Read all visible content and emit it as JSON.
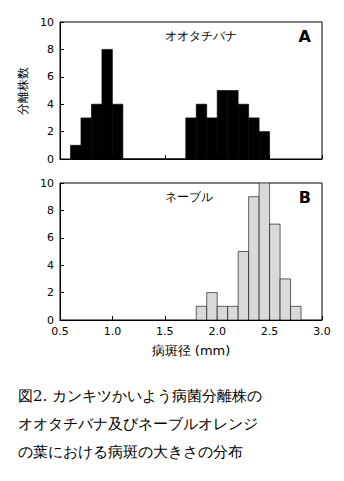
{
  "chart_data": [
    {
      "type": "histogram",
      "title": "オオタチバナ",
      "annotation": "A",
      "ylabel": "分離株数",
      "bins": [
        0.6,
        0.7,
        0.8,
        0.9,
        1.0,
        1.1,
        1.2,
        1.3,
        1.4,
        1.5,
        1.6,
        1.7,
        1.8,
        1.9,
        2.0,
        2.1,
        2.2,
        2.3,
        2.4,
        2.5
      ],
      "values": [
        1,
        3,
        4,
        8,
        4,
        0,
        0,
        0,
        0,
        0,
        0,
        3,
        4,
        3,
        5,
        5,
        4,
        3,
        2
      ],
      "color": "#000000",
      "xlim": [
        0.5,
        3.0
      ],
      "xticks": [
        0.5,
        {
          "value": 1,
          "label": "1.0"
        },
        1.5,
        {
          "value": 2,
          "label": "2.0"
        },
        2.5,
        {
          "value": 3,
          "label": "3.0"
        }
      ],
      "ylim": [
        0,
        10
      ],
      "yticks": [
        0,
        2,
        4,
        6,
        8,
        10
      ],
      "grid": false,
      "tick_labels": "y"
    },
    {
      "type": "histogram",
      "title": "ネーブル",
      "annotation": "B",
      "xlabel": "病斑径 (mm)",
      "bins": [
        1.8,
        1.9,
        2.0,
        2.1,
        2.2,
        2.3,
        2.4,
        2.5,
        2.6,
        2.7,
        2.8
      ],
      "values": [
        1,
        2,
        1,
        1,
        5,
        9,
        10,
        7,
        3,
        1
      ],
      "color": "#d9d9d9",
      "xlim": [
        0.5,
        3.0
      ],
      "xticks": [
        0.5,
        {
          "value": 1,
          "label": "1.0"
        },
        1.5,
        {
          "value": 2,
          "label": "2.0"
        },
        2.5,
        {
          "value": 3,
          "label": "3.0"
        }
      ],
      "ylim": [
        0,
        10
      ],
      "yticks": [
        0,
        2,
        4,
        6,
        8,
        10
      ],
      "grid": false
    }
  ],
  "caption": [
    "図2. カンキツかいよう病菌分離株の",
    "オオタチバナ及びネーブルオレンジ",
    "の葉における病斑の大きさの分布"
  ]
}
